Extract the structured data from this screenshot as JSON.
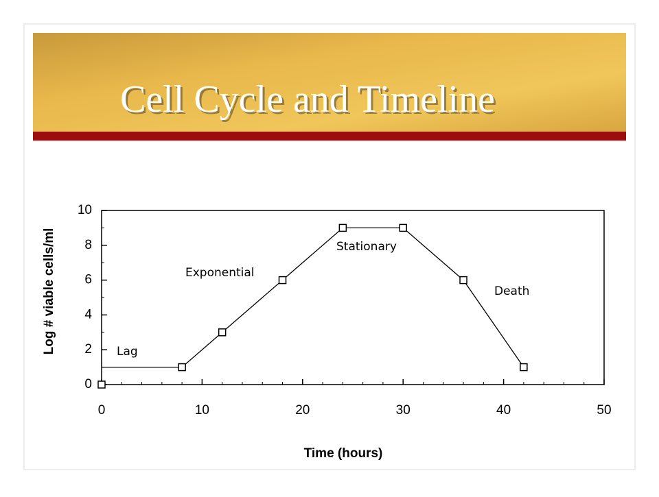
{
  "chart_data": {
    "type": "line",
    "title": "Cell Cycle and Timeline",
    "x_label": "Time (hours)",
    "y_label": "Log # viable cells/ml",
    "x": [
      0,
      8,
      12,
      18,
      24,
      30,
      36,
      42
    ],
    "series": [
      {
        "color": "#000000",
        "values": [
          1,
          1,
          3,
          6,
          9,
          9,
          6,
          1
        ]
      }
    ],
    "annotations": [
      "Lag",
      "Exponential",
      "Stationary",
      "Death"
    ],
    "xlim": [
      0,
      50
    ],
    "xticks": [
      0,
      10,
      20,
      30,
      40,
      50
    ],
    "ylim": [
      0,
      10
    ],
    "yticks": [
      0,
      2,
      4,
      6,
      8,
      10
    ]
  }
}
